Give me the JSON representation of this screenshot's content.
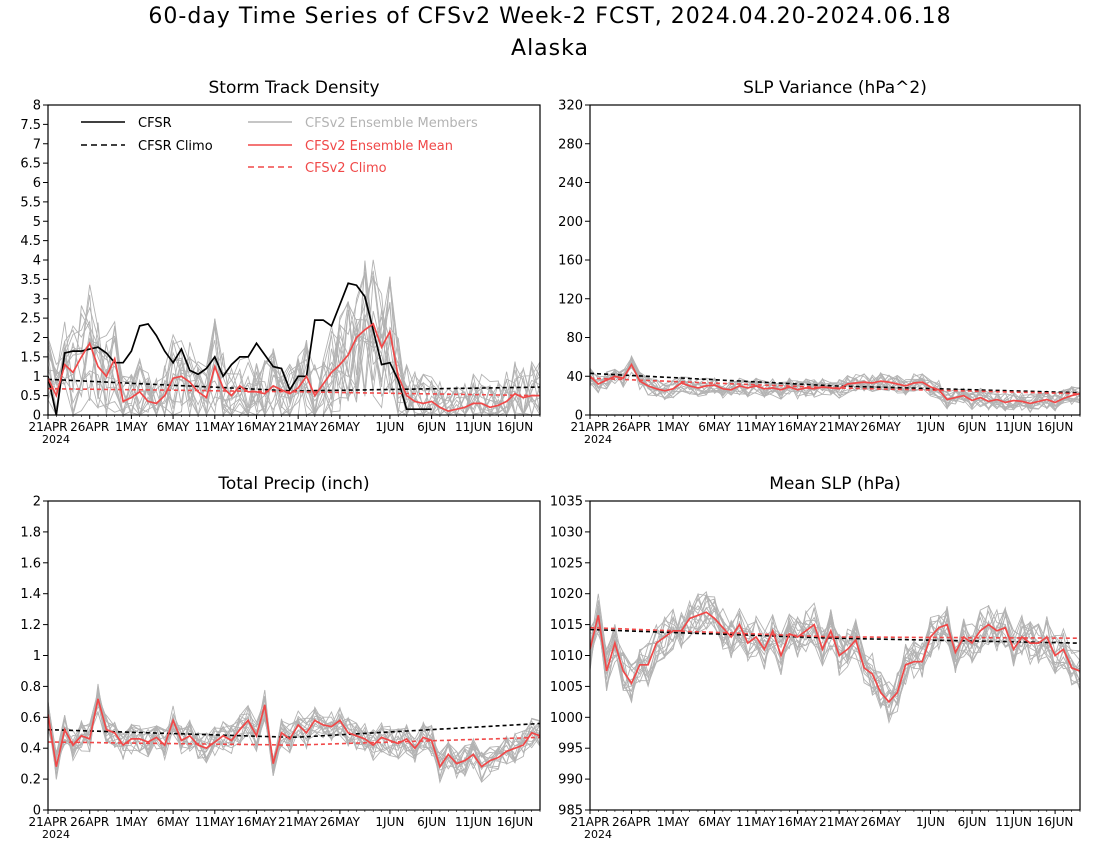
{
  "page": {
    "title": "60-day Time Series of CFSv2 Week-2 FCST, 2024.04.20-2024.06.18",
    "subtitle": "Alaska"
  },
  "colors": {
    "cfsr": "#000000",
    "members": "#b3b3b3",
    "mean": "#f04848",
    "frame": "#000000"
  },
  "legend": {
    "cfsr": "CFSR",
    "cfsr_climo": "CFSR Climo",
    "members": "CFSv2 Ensemble Members",
    "mean": "CFSv2 Ensemble Mean",
    "cfsv2_climo": "CFSv2 Climo"
  },
  "chart_data": [
    {
      "id": "storm",
      "type": "line",
      "title": "Storm Track Density",
      "ylim": [
        0,
        8
      ],
      "yticks": [
        "0",
        "0.5",
        "1",
        "1.5",
        "2",
        "2.5",
        "3",
        "3.5",
        "4",
        "4.5",
        "5",
        "5.5",
        "6",
        "6.5",
        "7",
        "7.5",
        "8"
      ],
      "xtick_labels": [
        "21APR",
        "26APR",
        "1MAY",
        "6MAY",
        "11MAY",
        "16MAY",
        "21MAY",
        "26MAY",
        "1JUN",
        "6JUN",
        "11JUN",
        "16JUN"
      ],
      "xtick_day": [
        0,
        5,
        10,
        15,
        20,
        25,
        30,
        35,
        41,
        46,
        51,
        56
      ],
      "year_label": "2024",
      "legend_position": "top-left",
      "series": [
        {
          "name": "CFSR",
          "style": "solid",
          "color": "cfsr",
          "x0": 0,
          "values": [
            1.0,
            0.0,
            1.6,
            1.65,
            1.65,
            1.7,
            1.75,
            1.6,
            1.35,
            1.35,
            1.65,
            2.3,
            2.35,
            2.05,
            1.65,
            1.35,
            1.7,
            1.15,
            1.05,
            1.2,
            1.5,
            1.0,
            1.3,
            1.5,
            1.5,
            1.85,
            1.55,
            1.25,
            1.2,
            0.65,
            1.0,
            1.0,
            2.45,
            2.45,
            2.3,
            2.85,
            3.4,
            3.35,
            3.05,
            2.2,
            1.3,
            1.35,
            0.9,
            0.15,
            0.15,
            0.15,
            0.15
          ]
        },
        {
          "name": "CFSR Climo",
          "style": "dash",
          "color": "cfsr",
          "x0": 0,
          "from": 0.92,
          "mid": 0.62,
          "to": 0.72
        },
        {
          "name": "CFSv2 Ensemble Mean",
          "style": "solid",
          "color": "mean",
          "x0": 0,
          "values": [
            0.95,
            0.5,
            1.3,
            1.1,
            1.5,
            1.85,
            1.25,
            1.0,
            1.45,
            0.35,
            0.45,
            0.6,
            0.35,
            0.3,
            0.5,
            0.95,
            1.0,
            0.85,
            0.6,
            0.45,
            1.25,
            0.7,
            0.5,
            0.75,
            0.6,
            0.6,
            0.55,
            0.75,
            0.65,
            0.55,
            0.7,
            1.0,
            0.5,
            0.8,
            1.1,
            1.3,
            1.55,
            2.0,
            2.2,
            2.35,
            1.75,
            2.15,
            1.0,
            0.5,
            0.35,
            0.3,
            0.35,
            0.2,
            0.1,
            0.15,
            0.2,
            0.3,
            0.3,
            0.2,
            0.25,
            0.35,
            0.55,
            0.45,
            0.5,
            0.5
          ]
        },
        {
          "name": "CFSv2 Climo",
          "style": "dash",
          "color": "mean",
          "from": 0.68,
          "mid": 0.6,
          "to": 0.5
        }
      ]
    },
    {
      "id": "slpvar",
      "type": "line",
      "title": "SLP Variance (hPa^2)",
      "ylim": [
        0,
        320
      ],
      "yticks": [
        "0",
        "40",
        "80",
        "120",
        "160",
        "200",
        "240",
        "280",
        "320"
      ],
      "xtick_labels": [
        "21APR",
        "26APR",
        "1MAY",
        "6MAY",
        "11MAY",
        "16MAY",
        "21MAY",
        "26MAY",
        "1JUN",
        "6JUN",
        "11JUN",
        "16JUN"
      ],
      "xtick_day": [
        0,
        5,
        10,
        15,
        20,
        25,
        30,
        35,
        41,
        46,
        51,
        56
      ],
      "year_label": "2024",
      "series": [
        {
          "name": "CFSR Climo",
          "style": "dash",
          "color": "cfsr",
          "from": 43,
          "mid": 30,
          "to": 23
        },
        {
          "name": "CFSv2 Ensemble Mean",
          "style": "solid",
          "color": "mean",
          "values": [
            40,
            32,
            36,
            40,
            38,
            52,
            35,
            30,
            27,
            25,
            27,
            33,
            30,
            28,
            30,
            31,
            27,
            26,
            30,
            28,
            30,
            27,
            28,
            26,
            29,
            26,
            28,
            27,
            29,
            28,
            27,
            32,
            33,
            34,
            33,
            35,
            34,
            32,
            30,
            33,
            34,
            29,
            26,
            16,
            18,
            20,
            15,
            18,
            14,
            16,
            13,
            15,
            14,
            12,
            14,
            16,
            13,
            17,
            20,
            22
          ]
        },
        {
          "name": "CFSv2 Climo",
          "style": "dash",
          "color": "mean",
          "from": 38,
          "mid": 28,
          "to": 22
        }
      ]
    },
    {
      "id": "precip",
      "type": "line",
      "title": "Total Precip (inch)",
      "ylim": [
        0,
        2
      ],
      "yticks": [
        "0",
        "0.2",
        "0.4",
        "0.6",
        "0.8",
        "1",
        "1.2",
        "1.4",
        "1.6",
        "1.8",
        "2"
      ],
      "xtick_labels": [
        "21APR",
        "26APR",
        "1MAY",
        "6MAY",
        "11MAY",
        "16MAY",
        "21MAY",
        "26MAY",
        "1JUN",
        "6JUN",
        "11JUN",
        "16JUN"
      ],
      "xtick_day": [
        0,
        5,
        10,
        15,
        20,
        25,
        30,
        35,
        41,
        46,
        51,
        56
      ],
      "year_label": "2024",
      "series": [
        {
          "name": "CFSR Climo",
          "style": "dash",
          "color": "cfsr",
          "from": 0.52,
          "mid": 0.47,
          "to": 0.56
        },
        {
          "name": "CFSv2 Ensemble Mean",
          "style": "solid",
          "color": "mean",
          "values": [
            0.62,
            0.28,
            0.52,
            0.42,
            0.48,
            0.46,
            0.72,
            0.52,
            0.5,
            0.42,
            0.46,
            0.46,
            0.44,
            0.47,
            0.42,
            0.58,
            0.45,
            0.48,
            0.42,
            0.4,
            0.44,
            0.48,
            0.45,
            0.52,
            0.58,
            0.48,
            0.68,
            0.3,
            0.5,
            0.46,
            0.55,
            0.5,
            0.58,
            0.55,
            0.54,
            0.58,
            0.5,
            0.48,
            0.46,
            0.42,
            0.47,
            0.45,
            0.43,
            0.46,
            0.4,
            0.47,
            0.45,
            0.28,
            0.36,
            0.3,
            0.32,
            0.36,
            0.28,
            0.32,
            0.34,
            0.38,
            0.4,
            0.42,
            0.5,
            0.48
          ]
        },
        {
          "name": "CFSv2 Climo",
          "style": "dash",
          "color": "mean",
          "from": 0.44,
          "mid": 0.42,
          "to": 0.47
        }
      ]
    },
    {
      "id": "meanslp",
      "type": "line",
      "title": "Mean SLP (hPa)",
      "ylim": [
        985,
        1035
      ],
      "yticks": [
        "985",
        "990",
        "995",
        "1000",
        "1005",
        "1010",
        "1015",
        "1020",
        "1025",
        "1030",
        "1035"
      ],
      "xtick_labels": [
        "21APR",
        "26APR",
        "1MAY",
        "6MAY",
        "11MAY",
        "16MAY",
        "21MAY",
        "26MAY",
        "1JUN",
        "6JUN",
        "11JUN",
        "16JUN"
      ],
      "xtick_day": [
        0,
        5,
        10,
        15,
        20,
        25,
        30,
        35,
        41,
        46,
        51,
        56
      ],
      "year_label": "2024",
      "series": [
        {
          "name": "CFSR Climo",
          "style": "dash",
          "color": "cfsr",
          "from": 1014.2,
          "mid": 1012.8,
          "to": 1012.0
        },
        {
          "name": "CFSv2 Ensemble Mean",
          "style": "solid",
          "color": "mean",
          "values": [
            1011,
            1016.5,
            1007.5,
            1012,
            1007.5,
            1005.5,
            1008.5,
            1008.5,
            1012,
            1013,
            1014,
            1014,
            1016,
            1016.5,
            1017,
            1016,
            1014.5,
            1013,
            1015,
            1012,
            1013,
            1011,
            1014,
            1010,
            1013.5,
            1013,
            1014,
            1015,
            1011,
            1014,
            1010,
            1011,
            1012.5,
            1008,
            1007,
            1004,
            1002.5,
            1004,
            1008.5,
            1009,
            1009,
            1013,
            1014.5,
            1015,
            1010.5,
            1013,
            1012,
            1014,
            1015,
            1014,
            1014.5,
            1011,
            1013,
            1012,
            1012,
            1013,
            1010,
            1011,
            1008,
            1007.5
          ]
        },
        {
          "name": "CFSv2 Climo",
          "style": "dash",
          "color": "mean",
          "from": 1014.5,
          "mid": 1013.0,
          "to": 1012.8
        }
      ]
    }
  ]
}
